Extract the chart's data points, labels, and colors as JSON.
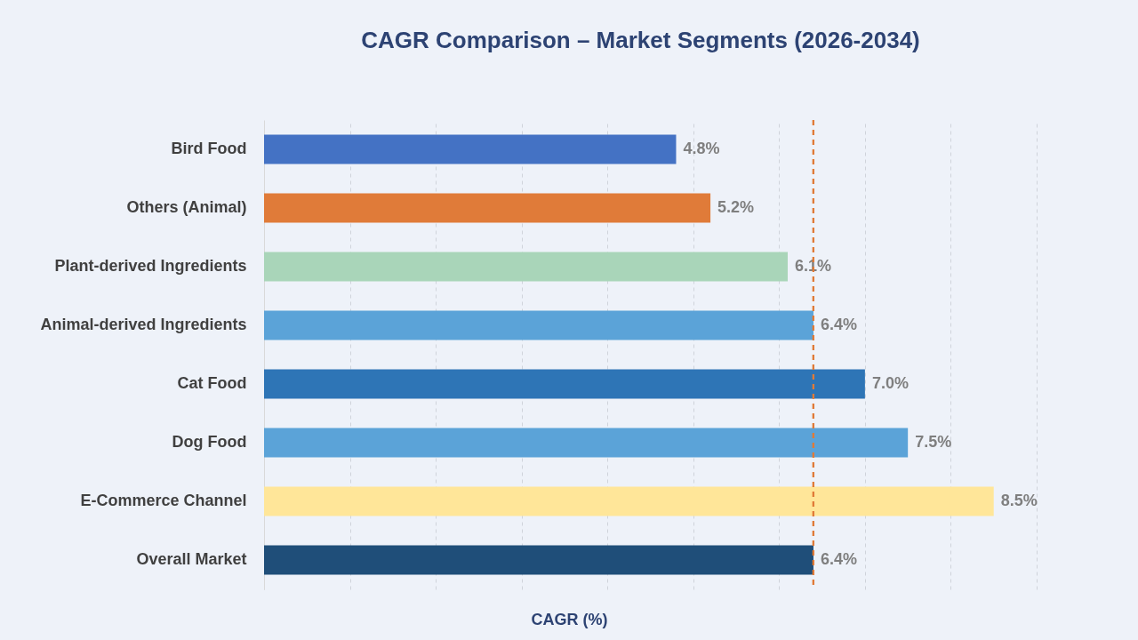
{
  "chart_data": {
    "type": "bar",
    "orientation": "horizontal",
    "title": "CAGR Comparison – Market Segments (2026-2034)",
    "xlabel": "CAGR (%)",
    "categories": [
      "Bird Food",
      "Others (Animal)",
      "Plant-derived Ingredients",
      "Animal-derived Ingredients",
      "Cat Food",
      "Dog Food",
      "E-Commerce Channel",
      "Overall Market"
    ],
    "values": [
      4.8,
      5.2,
      6.1,
      6.4,
      7.0,
      7.5,
      8.5,
      6.4
    ],
    "colors": [
      "#4472c4",
      "#e07b39",
      "#a9d5b9",
      "#5ba3d8",
      "#2e75b6",
      "#5ba3d8",
      "#ffe699",
      "#1f4e79"
    ],
    "value_labels": [
      "4.8%",
      "5.2%",
      "6.1%",
      "6.4%",
      "7.0%",
      "7.5%",
      "8.5%",
      "6.4%"
    ],
    "xlim": [
      0,
      9
    ],
    "xticks": [
      {
        "value": 0,
        "label": null
      },
      {
        "value": 1,
        "label": null
      },
      {
        "value": 2,
        "label": null
      },
      {
        "value": 3,
        "label": null
      },
      {
        "value": 4,
        "label": null
      },
      {
        "value": 5,
        "label": null
      },
      {
        "value": 6,
        "label": null
      },
      {
        "value": 7,
        "label": null
      },
      {
        "value": 8,
        "label": null
      },
      {
        "value": 9,
        "label": null
      }
    ],
    "grid": "x",
    "tick_labels": "y",
    "ref_lines": [
      {
        "axis": "x",
        "value": 6.4,
        "color": "#e07b39",
        "line_style": "dashed"
      }
    ]
  }
}
